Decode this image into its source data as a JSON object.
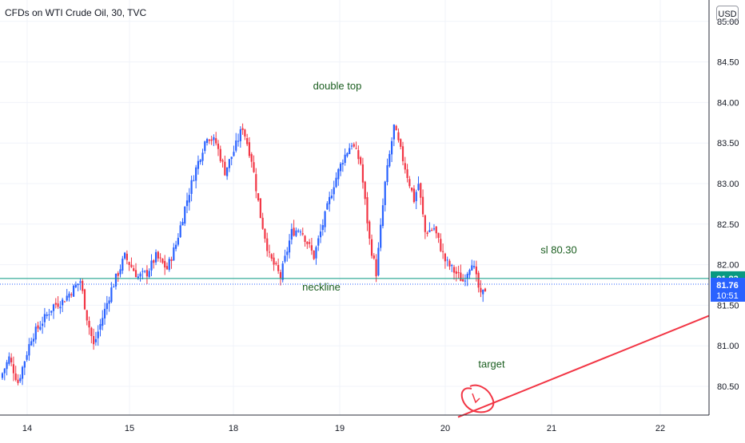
{
  "header": {
    "title": "CFDs on WTI Crude Oil, 30, TVC",
    "currency_button": "USD"
  },
  "colors": {
    "up": "#2962ff",
    "down": "#f23645",
    "neckline": "#089981",
    "current_price_line": "#2962ff",
    "annotation_text": "#1b5e20",
    "target_line": "#f23645",
    "grid": "#f0f3fa"
  },
  "chart_data": {
    "type": "candlestick",
    "y_axis": {
      "range": [
        80.1,
        85.05
      ],
      "ticks": [
        "80.50",
        "81.00",
        "81.50",
        "82.00",
        "82.50",
        "83.00",
        "83.50",
        "84.00",
        "84.50",
        "85.00"
      ]
    },
    "x_axis": {
      "ticks": [
        "14",
        "15",
        "18",
        "19",
        "20",
        "21",
        "22"
      ]
    },
    "price_labels": [
      {
        "value": 81.83,
        "text": "81.83",
        "color": "#089981"
      },
      {
        "value": 81.76,
        "text": "81.76",
        "color": "#2962ff",
        "countdown": "10:51"
      }
    ],
    "annotations": [
      {
        "text": "double top",
        "price": 84.2
      },
      {
        "text": "neckline",
        "price": 81.72
      },
      {
        "text": "sl 80.30",
        "price": 82.18
      },
      {
        "text": "target",
        "price": 80.77
      }
    ],
    "neckline": {
      "price": 81.83
    },
    "target_line": {
      "start_price": 80.12,
      "end_price": 81.37
    },
    "price_path": [
      [
        80.6,
        4
      ],
      [
        80.85,
        4
      ],
      [
        80.55,
        4
      ],
      [
        81.1,
        6
      ],
      [
        81.5,
        10
      ],
      [
        81.55,
        4
      ],
      [
        81.8,
        8
      ],
      [
        81.35,
        3
      ],
      [
        81.0,
        3
      ],
      [
        81.7,
        8
      ],
      [
        82.1,
        6
      ],
      [
        81.85,
        6
      ],
      [
        81.9,
        4
      ],
      [
        82.1,
        4
      ],
      [
        81.95,
        5
      ],
      [
        82.25,
        4
      ],
      [
        82.7,
        4
      ],
      [
        83.1,
        4
      ],
      [
        83.6,
        6
      ],
      [
        83.5,
        4
      ],
      [
        83.15,
        4
      ],
      [
        83.4,
        4
      ],
      [
        83.7,
        4
      ],
      [
        83.3,
        4
      ],
      [
        82.6,
        4
      ],
      [
        82.1,
        4
      ],
      [
        81.85,
        5
      ],
      [
        82.4,
        5
      ],
      [
        82.45,
        4
      ],
      [
        82.1,
        6
      ],
      [
        82.5,
        4
      ],
      [
        83.0,
        5
      ],
      [
        83.3,
        4
      ],
      [
        83.5,
        4
      ],
      [
        83.25,
        4
      ],
      [
        82.3,
        4
      ],
      [
        81.9,
        3
      ],
      [
        83.0,
        4
      ],
      [
        83.7,
        4
      ],
      [
        83.4,
        3
      ],
      [
        82.8,
        6
      ],
      [
        83.0,
        2
      ],
      [
        82.4,
        3
      ],
      [
        82.45,
        4
      ],
      [
        82.05,
        5
      ],
      [
        81.95,
        3
      ],
      [
        81.8,
        5
      ],
      [
        82.05,
        4
      ],
      [
        81.6,
        4
      ],
      [
        81.7,
        2
      ]
    ]
  }
}
